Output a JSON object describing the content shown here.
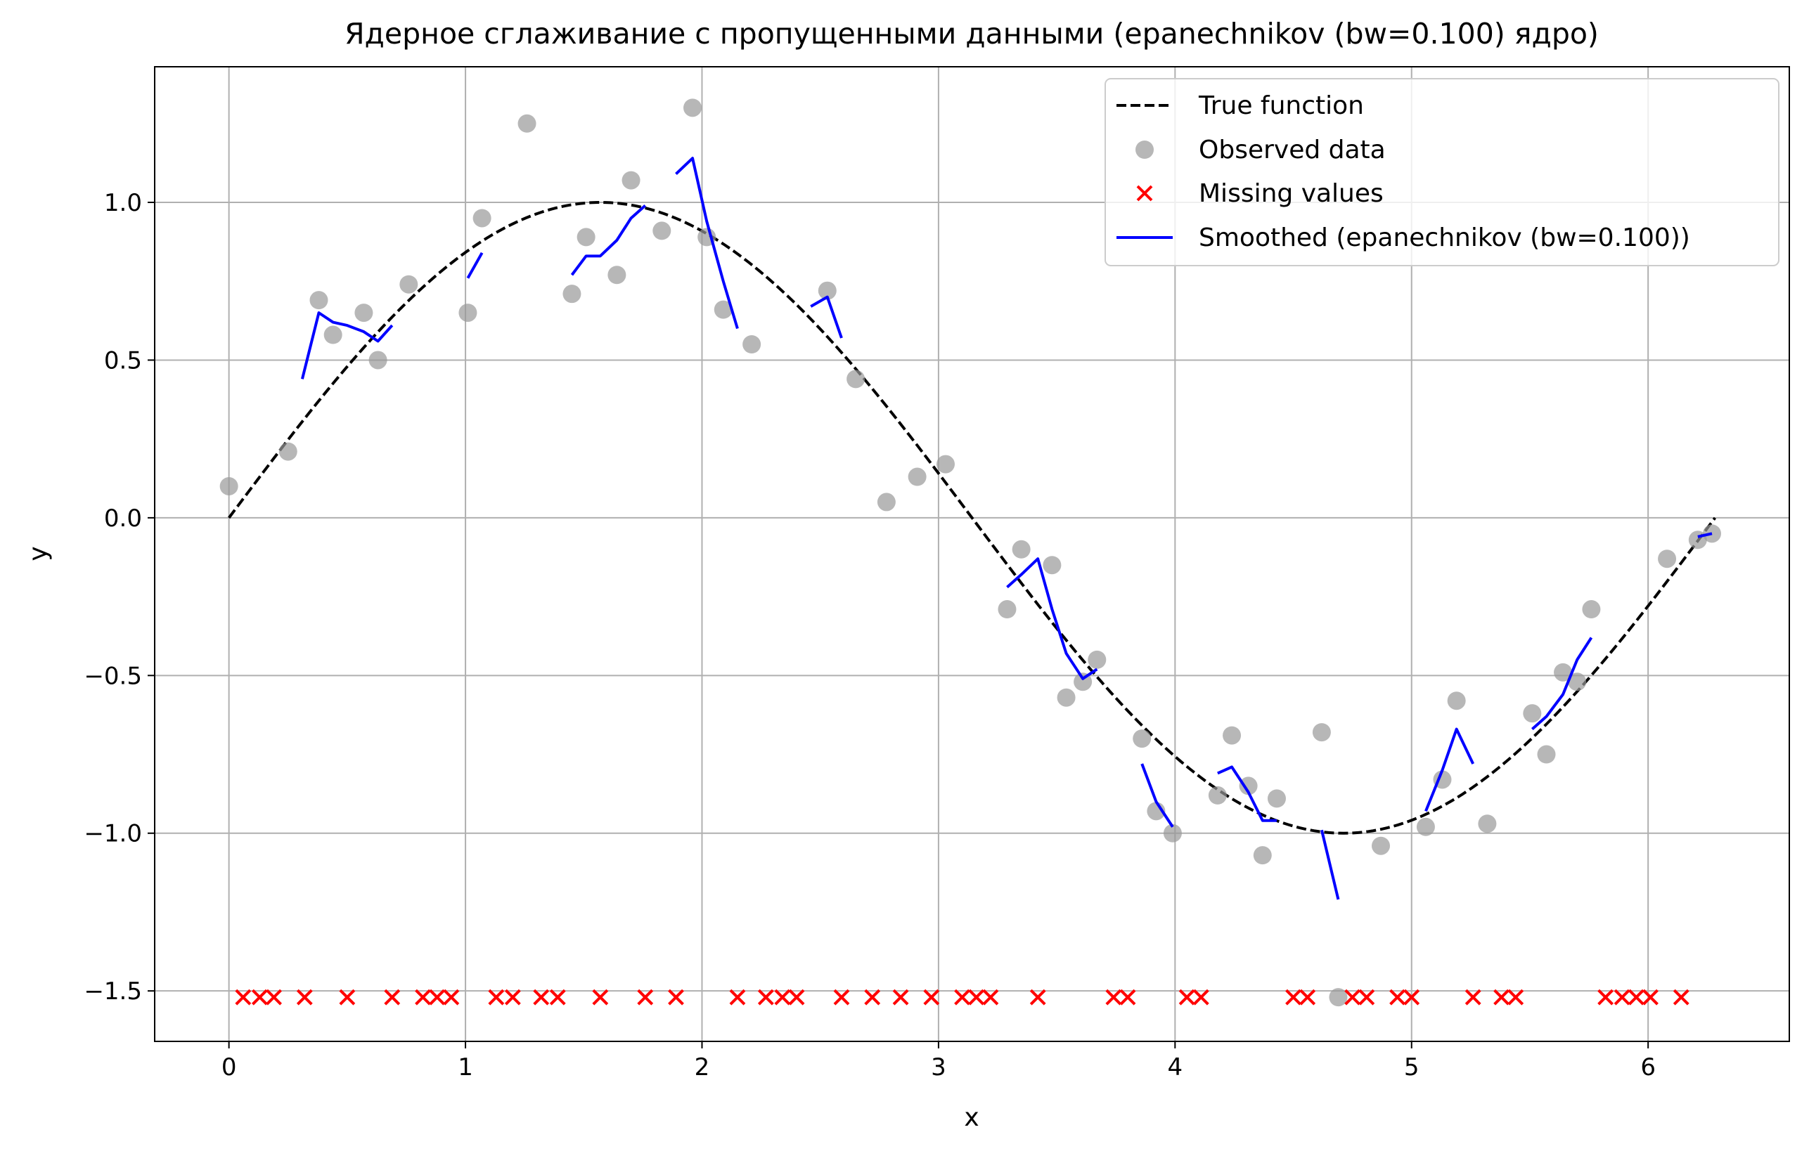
{
  "chart_data": {
    "type": "scatter",
    "title": "Ядерное сглаживание с пропущенными данными (epanechnikov (bw=0.100) ядро)",
    "xlabel": "x",
    "ylabel": "y",
    "xlim": [
      -0.314,
      6.597
    ],
    "ylim": [
      -1.66,
      1.43
    ],
    "grid": true,
    "legend_position": "top-right",
    "x_ticks": [
      0,
      1,
      2,
      3,
      4,
      5,
      6
    ],
    "y_ticks": [
      1.0,
      0.5,
      0.0,
      -0.5,
      -1.0,
      -1.5
    ],
    "x_tick_labels": [
      "0",
      "1",
      "2",
      "3",
      "4",
      "5",
      "6"
    ],
    "y_tick_labels": [
      "1.0",
      "0.5",
      "0.0",
      "−0.5",
      "−1.0",
      "−1.5"
    ],
    "legend": [
      {
        "label": "True function",
        "style": "dashed-line",
        "color": "#000000"
      },
      {
        "label": "Observed data",
        "style": "circle",
        "color": "#999999"
      },
      {
        "label": "Missing values",
        "style": "x",
        "color": "#ff0000"
      },
      {
        "label": "Smoothed (epanechnikov (bw=0.100))",
        "style": "line",
        "color": "#0000ff"
      }
    ],
    "series": [
      {
        "name": "True function",
        "kind": "function",
        "function": "sin(x)",
        "x_range": [
          0,
          6.283
        ],
        "color": "#000000",
        "dash": true
      },
      {
        "name": "Observed data",
        "kind": "scatter",
        "color": "#999999",
        "points": [
          [
            0.0,
            0.1
          ],
          [
            0.25,
            0.21
          ],
          [
            0.38,
            0.69
          ],
          [
            0.44,
            0.58
          ],
          [
            0.57,
            0.65
          ],
          [
            0.63,
            0.5
          ],
          [
            0.76,
            0.74
          ],
          [
            1.01,
            0.65
          ],
          [
            1.07,
            0.95
          ],
          [
            1.26,
            1.25
          ],
          [
            1.45,
            0.71
          ],
          [
            1.51,
            0.89
          ],
          [
            1.64,
            0.77
          ],
          [
            1.7,
            1.07
          ],
          [
            1.83,
            0.91
          ],
          [
            1.96,
            1.3
          ],
          [
            2.02,
            0.89
          ],
          [
            2.09,
            0.66
          ],
          [
            2.21,
            0.55
          ],
          [
            2.53,
            0.72
          ],
          [
            2.65,
            0.44
          ],
          [
            2.78,
            0.05
          ],
          [
            2.91,
            0.13
          ],
          [
            3.03,
            0.17
          ],
          [
            3.29,
            -0.29
          ],
          [
            3.35,
            -0.1
          ],
          [
            3.48,
            -0.15
          ],
          [
            3.54,
            -0.57
          ],
          [
            3.61,
            -0.52
          ],
          [
            3.67,
            -0.45
          ],
          [
            3.86,
            -0.7
          ],
          [
            3.92,
            -0.93
          ],
          [
            3.99,
            -1.0
          ],
          [
            4.18,
            -0.88
          ],
          [
            4.24,
            -0.69
          ],
          [
            4.31,
            -0.85
          ],
          [
            4.37,
            -1.07
          ],
          [
            4.43,
            -0.89
          ],
          [
            4.62,
            -0.68
          ],
          [
            4.69,
            -1.52
          ],
          [
            4.87,
            -1.04
          ],
          [
            5.06,
            -0.98
          ],
          [
            5.13,
            -0.83
          ],
          [
            5.19,
            -0.58
          ],
          [
            5.32,
            -0.97
          ],
          [
            5.51,
            -0.62
          ],
          [
            5.57,
            -0.75
          ],
          [
            5.64,
            -0.49
          ],
          [
            5.7,
            -0.52
          ],
          [
            5.76,
            -0.29
          ],
          [
            6.08,
            -0.13
          ],
          [
            6.21,
            -0.07
          ],
          [
            6.27,
            -0.05
          ]
        ]
      },
      {
        "name": "Missing values",
        "kind": "marker-x",
        "color": "#ff0000",
        "y": -1.52,
        "x": [
          0.06,
          0.13,
          0.19,
          0.32,
          0.5,
          0.69,
          0.82,
          0.88,
          0.94,
          1.13,
          1.2,
          1.32,
          1.39,
          1.57,
          1.76,
          1.89,
          2.15,
          2.27,
          2.34,
          2.4,
          2.59,
          2.72,
          2.84,
          2.97,
          3.1,
          3.16,
          3.22,
          3.42,
          3.74,
          3.8,
          4.05,
          4.11,
          4.5,
          4.56,
          4.75,
          4.81,
          4.94,
          5.0,
          5.26,
          5.38,
          5.44,
          5.82,
          5.89,
          5.95,
          6.01,
          6.14
        ]
      },
      {
        "name": "Smoothed (epanechnikov (bw=0.100))",
        "kind": "segments",
        "color": "#0000ff",
        "segments": [
          [
            [
              0.31,
              0.44
            ],
            [
              0.38,
              0.65
            ],
            [
              0.44,
              0.62
            ],
            [
              0.5,
              0.61
            ],
            [
              0.57,
              0.59
            ],
            [
              0.63,
              0.56
            ],
            [
              0.69,
              0.61
            ]
          ],
          [
            [
              1.01,
              0.76
            ],
            [
              1.07,
              0.84
            ]
          ],
          [
            [
              1.45,
              0.77
            ],
            [
              1.51,
              0.83
            ],
            [
              1.57,
              0.83
            ],
            [
              1.64,
              0.88
            ],
            [
              1.7,
              0.95
            ],
            [
              1.76,
              0.99
            ]
          ],
          [
            [
              1.89,
              1.09
            ],
            [
              1.96,
              1.14
            ],
            [
              2.02,
              0.94
            ],
            [
              2.09,
              0.75
            ],
            [
              2.15,
              0.6
            ]
          ],
          [
            [
              2.46,
              0.67
            ],
            [
              2.53,
              0.7
            ],
            [
              2.59,
              0.57
            ]
          ],
          [
            [
              3.29,
              -0.22
            ],
            [
              3.35,
              -0.18
            ],
            [
              3.42,
              -0.13
            ],
            [
              3.48,
              -0.29
            ],
            [
              3.54,
              -0.43
            ],
            [
              3.61,
              -0.51
            ],
            [
              3.67,
              -0.48
            ]
          ],
          [
            [
              3.86,
              -0.78
            ],
            [
              3.92,
              -0.9
            ],
            [
              3.99,
              -0.98
            ]
          ],
          [
            [
              4.18,
              -0.81
            ],
            [
              4.24,
              -0.79
            ],
            [
              4.31,
              -0.87
            ],
            [
              4.37,
              -0.96
            ],
            [
              4.43,
              -0.96
            ]
          ],
          [
            [
              4.62,
              -0.99
            ],
            [
              4.69,
              -1.21
            ]
          ],
          [
            [
              5.06,
              -0.93
            ],
            [
              5.13,
              -0.8
            ],
            [
              5.19,
              -0.67
            ],
            [
              5.26,
              -0.78
            ]
          ],
          [
            [
              5.51,
              -0.67
            ],
            [
              5.57,
              -0.63
            ],
            [
              5.64,
              -0.56
            ],
            [
              5.7,
              -0.45
            ],
            [
              5.76,
              -0.38
            ]
          ],
          [
            [
              6.21,
              -0.06
            ],
            [
              6.27,
              -0.05
            ]
          ]
        ]
      }
    ]
  }
}
